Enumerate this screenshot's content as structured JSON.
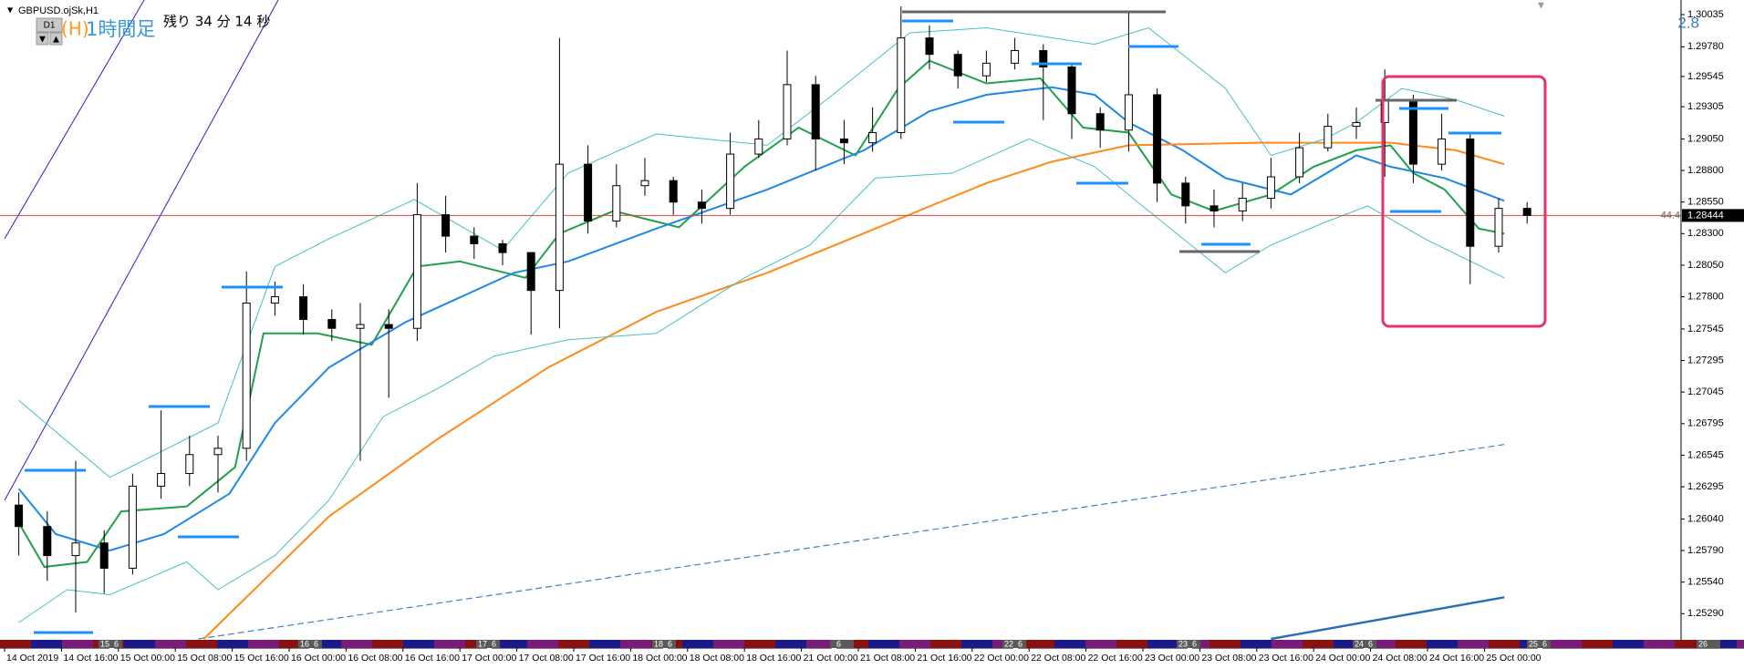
{
  "header": {
    "symbol": "GBPUSD.ojSk,H1",
    "timeframe_button": "D1",
    "overlay_label": "(H)",
    "timeframe_text": "1時間足",
    "countdown": "残り 34 分 14 秒",
    "spread": "2.8"
  },
  "chart_data": {
    "type": "candlestick",
    "categories": [
      "14 Oct 2019",
      null,
      "14 Oct 16:00",
      null,
      "15 Oct 00:00",
      null,
      "15 Oct 08:00",
      null,
      "15 Oct 16:00",
      null,
      "16 Oct 00:00",
      null,
      "16 Oct 08:00",
      null,
      "16 Oct 16:00",
      null,
      "17 Oct 00:00",
      null,
      "17 Oct 08:00",
      null,
      "17 Oct 16:00",
      null,
      "18 Oct 00:00",
      null,
      "18 Oct 08:00",
      null,
      "18 Oct 16:00",
      null,
      "21 Oct 00:00",
      null,
      "21 Oct 08:00",
      null,
      "21 Oct 16:00",
      null,
      "22 Oct 00:00",
      null,
      "22 Oct 08:00",
      null,
      "22 Oct 16:00",
      null,
      "23 Oct 00:00",
      null,
      "23 Oct 08:00",
      null,
      "23 Oct 16:00",
      null,
      "24 Oct 00:00",
      null,
      "24 Oct 08:00",
      null,
      "24 Oct 16:00",
      null,
      "25 Oct 00:00",
      null
    ],
    "open": [
      1.2615,
      1.2598,
      1.2575,
      1.2585,
      1.2565,
      1.263,
      1.264,
      1.2655,
      1.266,
      1.2775,
      1.278,
      1.2762,
      1.2755,
      1.2758,
      1.2755,
      1.2845,
      1.2828,
      1.2822,
      1.2815,
      1.2785,
      1.2885,
      1.284,
      1.2868,
      1.2872,
      1.2855,
      1.285,
      1.2893,
      1.2905,
      1.2948,
      1.2905,
      1.2902,
      1.291,
      1.2985,
      1.2972,
      1.2955,
      1.2965,
      1.2975,
      1.2962,
      1.2925,
      1.2912,
      1.294,
      1.287,
      1.2852,
      1.2848,
      1.2858,
      1.2875,
      1.2898,
      1.2915,
      1.2918,
      1.2935,
      1.2885,
      1.2905,
      1.282,
      1.285
    ],
    "high": [
      1.2625,
      1.261,
      1.265,
      1.2595,
      1.264,
      1.269,
      1.267,
      1.267,
      1.28,
      1.2792,
      1.279,
      1.277,
      1.2775,
      1.277,
      1.287,
      1.286,
      1.2835,
      1.2825,
      1.2815,
      1.2985,
      1.29,
      1.2885,
      1.289,
      1.2875,
      1.2865,
      1.291,
      1.292,
      1.2975,
      1.2955,
      1.292,
      1.293,
      1.301,
      1.2995,
      1.2975,
      1.2975,
      1.2985,
      1.298,
      1.2965,
      1.293,
      1.3005,
      1.2945,
      1.2875,
      1.2865,
      1.287,
      1.289,
      1.291,
      1.2925,
      1.293,
      1.296,
      1.294,
      1.2925,
      1.291,
      1.2858,
      1.2855
    ],
    "low": [
      1.2575,
      1.2555,
      1.253,
      1.2545,
      1.256,
      1.262,
      1.263,
      1.2625,
      1.265,
      1.2765,
      1.275,
      1.2745,
      1.265,
      1.27,
      1.2745,
      1.2815,
      1.281,
      1.2805,
      1.275,
      1.2755,
      1.283,
      1.2835,
      1.286,
      1.2845,
      1.2838,
      1.2845,
      1.289,
      1.29,
      1.288,
      1.2885,
      1.2895,
      1.2905,
      1.296,
      1.2945,
      1.295,
      1.296,
      1.292,
      1.2905,
      1.2898,
      1.2895,
      1.2855,
      1.2838,
      1.2835,
      1.284,
      1.285,
      1.287,
      1.2895,
      1.2905,
      1.2875,
      1.287,
      1.288,
      1.279,
      1.2815,
      1.2838
    ],
    "close": [
      1.2598,
      1.2575,
      1.2585,
      1.2565,
      1.263,
      1.264,
      1.2655,
      1.266,
      1.2775,
      1.278,
      1.2762,
      1.2755,
      1.2758,
      1.2755,
      1.2845,
      1.2828,
      1.2822,
      1.2815,
      1.2785,
      1.2885,
      1.284,
      1.2868,
      1.2872,
      1.2855,
      1.285,
      1.2893,
      1.2905,
      1.2948,
      1.2905,
      1.2902,
      1.291,
      1.2985,
      1.2972,
      1.2955,
      1.2965,
      1.2975,
      1.2962,
      1.2925,
      1.2912,
      1.294,
      1.287,
      1.2852,
      1.2848,
      1.2858,
      1.2875,
      1.2898,
      1.2915,
      1.2918,
      1.2935,
      1.2885,
      1.2905,
      1.282,
      1.285,
      1.28444
    ],
    "lines": [
      {
        "color": "#1fa04a",
        "style": "solid",
        "x": [
          0,
          0.9,
          2.4,
          3.6,
          5.9,
          7.6,
          8.6,
          10.5,
          12.4,
          14,
          15.5,
          17.8,
          19,
          20.9,
          23.2,
          25.5,
          27.4,
          29.4,
          30.9,
          32,
          34,
          35.9,
          37.4,
          39,
          40.5,
          42,
          44,
          45.5,
          47,
          48.2,
          49,
          50.1,
          51.3,
          52.2
        ],
        "values": [
          1.2601,
          1.2566,
          1.257,
          1.261,
          1.2614,
          1.2645,
          1.2751,
          1.2751,
          1.2742,
          1.2804,
          1.2808,
          1.2795,
          1.283,
          1.2848,
          1.2835,
          1.2883,
          1.2914,
          1.2892,
          1.2945,
          1.2967,
          1.2949,
          1.2953,
          1.2914,
          1.291,
          1.2861,
          1.2848,
          1.2861,
          1.2883,
          1.2896,
          1.29,
          1.2878,
          1.2865,
          1.2834,
          1.283
        ]
      },
      {
        "color": "#1e88e5",
        "style": "solid",
        "x": [
          0,
          1.3,
          3.2,
          5.1,
          7.4,
          9,
          10.9,
          13.6,
          17.4,
          19.3,
          22.4,
          26.3,
          29.7,
          32,
          34,
          36.3,
          37.8,
          39,
          40.9,
          42.4,
          44.7,
          47,
          48.2,
          50.1,
          52.2
        ],
        "values": [
          1.2628,
          1.2592,
          1.2579,
          1.2592,
          1.2624,
          1.268,
          1.2724,
          1.276,
          1.2799,
          1.2808,
          1.2834,
          1.2865,
          1.2896,
          1.2927,
          1.294,
          1.2946,
          1.294,
          1.2918,
          1.2896,
          1.2874,
          1.2861,
          1.2892,
          1.2883,
          1.2874,
          1.2856
        ]
      },
      {
        "color": "#ff8a1a",
        "style": "solid",
        "x": [
          6.5,
          10.9,
          14.7,
          18.6,
          22.4,
          26.3,
          30.1,
          34,
          36.3,
          39,
          43.6,
          48.2,
          50.5,
          52.2
        ],
        "values": [
          1.2509,
          1.2606,
          1.2667,
          1.2724,
          1.2768,
          1.2799,
          1.2834,
          1.287,
          1.2887,
          1.29,
          1.2902,
          1.2902,
          1.2896,
          1.2885
        ]
      },
      {
        "color": "#48c0c0",
        "style": "thin",
        "x": [
          0,
          3.2,
          7,
          9,
          10.9,
          13.9,
          17,
          19.3,
          22.4,
          26.3,
          28.6,
          31.3,
          34,
          37.8,
          39.7,
          42.4,
          44,
          45.9,
          47,
          48.6,
          50.5,
          52.2
        ],
        "values": [
          1.2698,
          1.2637,
          1.268,
          1.2804,
          1.2826,
          1.2857,
          1.2817,
          1.2878,
          1.2909,
          1.29,
          1.294,
          1.2989,
          1.2993,
          1.298,
          1.2993,
          1.2945,
          1.2892,
          1.2905,
          1.2918,
          1.2945,
          1.2936,
          1.2923
        ]
      },
      {
        "color": "#48c0c0",
        "style": "thin",
        "x": [
          0,
          1.7,
          3.2,
          5.9,
          7,
          9,
          10.9,
          12.8,
          14.7,
          16.7,
          19.3,
          22.4,
          25.5,
          27.8,
          30.1,
          32.8,
          35.5,
          37.8,
          39.7,
          42.4,
          44,
          45.9,
          47.4,
          49.4,
          52.2
        ],
        "values": [
          1.2522,
          1.2548,
          1.2544,
          1.257,
          1.2548,
          1.2575,
          1.2619,
          1.2685,
          1.2707,
          1.2733,
          1.2746,
          1.2751,
          1.2795,
          1.2821,
          1.2874,
          1.2878,
          1.2905,
          1.2883,
          1.2848,
          1.2799,
          1.2821,
          1.2839,
          1.2852,
          1.2826,
          1.2795
        ]
      },
      {
        "color": "#4a7fc1",
        "style": "dashed",
        "x": [
          6.3,
          52.2
        ],
        "values": [
          1.2509,
          1.2663
        ]
      },
      {
        "color": "#2d6db5",
        "style": "thick",
        "x": [
          44,
          52.2
        ],
        "values": [
          1.2509,
          1.2542
        ]
      }
    ],
    "ylim": [
      1.2509,
      1.301
    ],
    "yticks": [
      1.30035,
      {
        "value": 1.2978,
        "label": "1.29780"
      },
      1.29545,
      1.29305,
      {
        "value": 1.2905,
        "label": "1.29050"
      },
      {
        "value": 1.288,
        "label": "1.28800"
      },
      {
        "value": 1.2855,
        "label": "1.28550"
      },
      {
        "value": 1.283,
        "label": "1.28300"
      },
      {
        "value": 1.2805,
        "label": "1.28050"
      },
      {
        "value": 1.278,
        "label": "1.27800"
      },
      1.27545,
      1.27295,
      1.27045,
      1.26795,
      1.26545,
      1.26295,
      {
        "value": 1.2604,
        "label": "1.26040"
      },
      {
        "value": 1.2579,
        "label": "1.25790"
      },
      {
        "value": 1.2554,
        "label": "1.25540"
      },
      {
        "value": 1.2529,
        "label": "1.25290"
      }
    ],
    "current_price": 1.28444,
    "current_price_color": "#e0443a",
    "clipped_label": "44.4",
    "session_labels": [
      "15_6",
      "16_6",
      "17_6",
      "18_6",
      "_6",
      "22_6",
      "23_6",
      "24_6",
      "25_6",
      "26"
    ]
  }
}
